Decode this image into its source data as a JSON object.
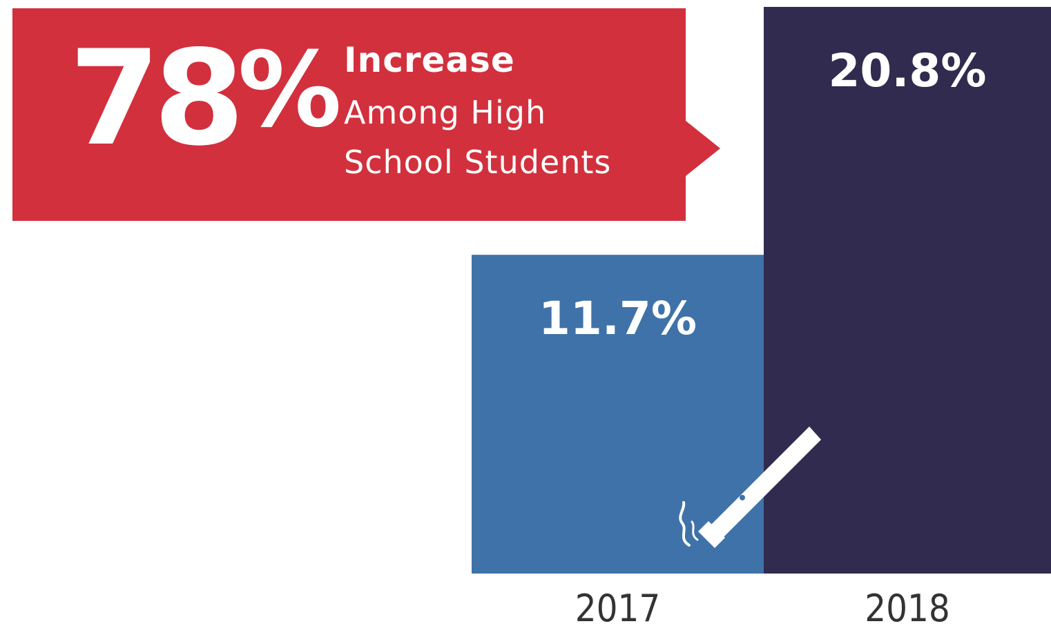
{
  "callout": {
    "number": "78",
    "percent_sign": "%",
    "line1": "Increase",
    "line2": "Among High",
    "line3": "School Students"
  },
  "colors": {
    "callout": "#d2303d",
    "bar_2017": "#3f72a8",
    "bar_2018": "#312b4f",
    "text_light": "#ffffff",
    "text_dark": "#333333"
  },
  "icon": "e-cigarette-icon",
  "chart_data": {
    "type": "bar",
    "categories": [
      "2017",
      "2018"
    ],
    "values": [
      11.7,
      20.8
    ],
    "data_labels": [
      "11.7%",
      "20.8%"
    ],
    "title": "",
    "xlabel": "",
    "ylabel": "",
    "ylim": [
      0,
      20.8
    ],
    "grid": false,
    "legend": "none"
  }
}
